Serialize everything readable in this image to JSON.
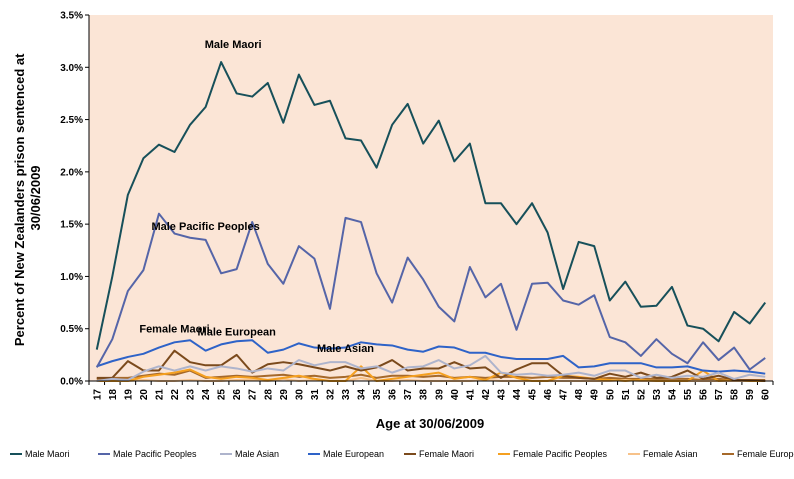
{
  "chart_data": {
    "type": "line",
    "xlabel": "Age at 30/06/2009",
    "ylabel_line1": "Percent of New Zealanders prison sentenced at",
    "ylabel_line2": "30/06/2009",
    "ylim": [
      0,
      3.5
    ],
    "yticks": [
      "0.0%",
      "0.5%",
      "1.0%",
      "1.5%",
      "2.0%",
      "2.5%",
      "3.0%",
      "3.5%"
    ],
    "grid": false,
    "legend_position": "bottom",
    "plot_background": "#fbe5d6",
    "x": [
      17,
      18,
      19,
      20,
      21,
      22,
      23,
      24,
      25,
      26,
      27,
      28,
      29,
      30,
      31,
      32,
      33,
      34,
      35,
      36,
      37,
      38,
      39,
      40,
      41,
      42,
      43,
      44,
      45,
      46,
      47,
      48,
      49,
      50,
      51,
      52,
      53,
      54,
      55,
      56,
      57,
      58,
      59,
      60
    ],
    "series": [
      {
        "name": "Male Maori",
        "color": "#17505a",
        "values": [
          0.3,
          1.0,
          1.78,
          2.13,
          2.26,
          2.19,
          2.45,
          2.62,
          3.05,
          2.75,
          2.72,
          2.85,
          2.47,
          2.93,
          2.64,
          2.68,
          2.32,
          2.3,
          2.04,
          2.45,
          2.65,
          2.27,
          2.49,
          2.1,
          2.27,
          1.7,
          1.7,
          1.5,
          1.7,
          1.42,
          0.88,
          1.33,
          1.29,
          0.77,
          0.95,
          0.71,
          0.72,
          0.9,
          0.53,
          0.5,
          0.38,
          0.66,
          0.55,
          0.75
        ]
      },
      {
        "name": "Male Pacific Peoples",
        "color": "#5565a8",
        "values": [
          0.13,
          0.4,
          0.86,
          1.06,
          1.6,
          1.41,
          1.37,
          1.35,
          1.03,
          1.07,
          1.52,
          1.12,
          0.93,
          1.29,
          1.17,
          0.69,
          1.56,
          1.52,
          1.03,
          0.75,
          1.18,
          0.97,
          0.71,
          0.57,
          1.09,
          0.8,
          0.93,
          0.49,
          0.93,
          0.94,
          0.77,
          0.73,
          0.82,
          0.42,
          0.37,
          0.24,
          0.4,
          0.26,
          0.17,
          0.37,
          0.2,
          0.32,
          0.11,
          0.22
        ]
      },
      {
        "name": "Male Asian",
        "color": "#aeb4cc",
        "values": [
          0.0,
          0.02,
          0.01,
          0.09,
          0.14,
          0.1,
          0.14,
          0.1,
          0.14,
          0.12,
          0.09,
          0.12,
          0.1,
          0.2,
          0.15,
          0.18,
          0.18,
          0.12,
          0.14,
          0.08,
          0.13,
          0.14,
          0.2,
          0.12,
          0.15,
          0.24,
          0.08,
          0.06,
          0.07,
          0.05,
          0.06,
          0.08,
          0.05,
          0.1,
          0.1,
          0.03,
          0.06,
          0.03,
          0.05,
          0.04,
          0.08,
          0.02,
          0.06,
          0.04
        ]
      },
      {
        "name": "Male European",
        "color": "#2e63c8",
        "values": [
          0.14,
          0.19,
          0.23,
          0.26,
          0.32,
          0.37,
          0.39,
          0.29,
          0.35,
          0.38,
          0.39,
          0.27,
          0.3,
          0.36,
          0.32,
          0.31,
          0.32,
          0.37,
          0.35,
          0.34,
          0.3,
          0.28,
          0.33,
          0.32,
          0.27,
          0.27,
          0.23,
          0.21,
          0.21,
          0.21,
          0.24,
          0.13,
          0.14,
          0.17,
          0.17,
          0.17,
          0.13,
          0.13,
          0.14,
          0.1,
          0.09,
          0.1,
          0.09,
          0.07
        ]
      },
      {
        "name": "Female Maori",
        "color": "#7b4a1c",
        "values": [
          0.03,
          0.03,
          0.19,
          0.1,
          0.1,
          0.29,
          0.18,
          0.15,
          0.15,
          0.25,
          0.08,
          0.16,
          0.18,
          0.16,
          0.13,
          0.1,
          0.14,
          0.1,
          0.13,
          0.2,
          0.1,
          0.12,
          0.12,
          0.18,
          0.12,
          0.13,
          0.03,
          0.11,
          0.17,
          0.17,
          0.05,
          0.03,
          0.02,
          0.07,
          0.04,
          0.08,
          0.03,
          0.04,
          0.1,
          0.02,
          0.05,
          0.01,
          0.01,
          0.0
        ]
      },
      {
        "name": "Female Pacific Peoples",
        "color": "#f5a020",
        "values": [
          0.0,
          0.0,
          0.0,
          0.04,
          0.06,
          0.08,
          0.11,
          0.04,
          0.02,
          0.04,
          0.03,
          0.01,
          0.03,
          0.05,
          0.02,
          0.0,
          0.0,
          0.14,
          0.0,
          0.02,
          0.04,
          0.06,
          0.08,
          0.02,
          0.04,
          0.01,
          0.08,
          0.03,
          0.0,
          0.0,
          0.05,
          0.04,
          0.02,
          0.01,
          0.0,
          0.01,
          0.0,
          0.0,
          0.0,
          0.1,
          0.0,
          0.01,
          0.0,
          0.0
        ]
      },
      {
        "name": "Female Asian",
        "color": "#f7c28a",
        "values": [
          0.0,
          0.0,
          0.0,
          0.01,
          0.0,
          0.0,
          0.01,
          0.0,
          0.0,
          0.01,
          0.01,
          0.0,
          0.02,
          0.0,
          0.01,
          0.0,
          0.0,
          0.03,
          0.0,
          0.0,
          0.01,
          0.0,
          0.0,
          0.0,
          0.0,
          0.01,
          0.0,
          0.0,
          0.0,
          0.0,
          0.0,
          0.0,
          0.0,
          0.0,
          0.01,
          0.0,
          0.0,
          0.0,
          0.0,
          0.0,
          0.0,
          0.0,
          0.0,
          0.0
        ]
      },
      {
        "name": "Female European",
        "color": "#a6692a",
        "values": [
          0.02,
          0.03,
          0.03,
          0.05,
          0.07,
          0.06,
          0.1,
          0.03,
          0.04,
          0.05,
          0.04,
          0.05,
          0.06,
          0.04,
          0.05,
          0.03,
          0.04,
          0.06,
          0.03,
          0.05,
          0.05,
          0.04,
          0.05,
          0.03,
          0.04,
          0.03,
          0.04,
          0.04,
          0.03,
          0.04,
          0.03,
          0.03,
          0.02,
          0.03,
          0.02,
          0.02,
          0.02,
          0.02,
          0.02,
          0.01,
          0.02,
          0.01,
          0.01,
          0.01
        ]
      }
    ],
    "annotations": [
      {
        "text": "Male Maori",
        "series": "Male Maori",
        "x": 25
      },
      {
        "text": "Male Pacific Peoples",
        "series": "Male Pacific Peoples",
        "x": 24
      },
      {
        "text": "Male European",
        "series": "Male European",
        "x": 26
      },
      {
        "text": "Female Maori",
        "series": "Female Maori",
        "x": 22
      },
      {
        "text": "Male Asian",
        "series": "Male Asian",
        "x": 33
      }
    ]
  }
}
